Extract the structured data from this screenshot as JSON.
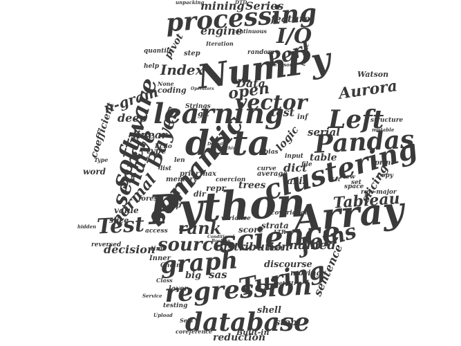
{
  "palette": {
    "ink": "#3a3a3a",
    "background": "#ffffff"
  },
  "words": [
    "Python",
    "Array",
    "NumPy",
    "data",
    "learning",
    "science",
    "clustering",
    "Pandas",
    "processing",
    "semantic",
    "regression",
    "database",
    "graph",
    "Turing",
    "Left",
    "vector",
    "software",
    "search",
    "naive",
    "Bayes",
    "Test",
    "Joins",
    "source",
    "rank",
    "Tableau",
    "I/O",
    "Perl",
    "Series",
    "Index",
    "mining",
    "engine",
    "feature",
    "Aurora",
    "Watson",
    "open",
    "Data",
    "normal",
    "n-gram",
    "coefficient",
    "deep",
    "linear",
    "slicing",
    "named",
    "distribution",
    "decision",
    "reduction",
    "sentence",
    "shell",
    "stop",
    "gain",
    "trees",
    "dict",
    "axis",
    "table",
    "serial",
    "logic",
    "test",
    "sas",
    "big",
    "score",
    "strata",
    "memory",
    "type",
    "word",
    "value",
    "slice",
    "forest",
    "repr",
    "dir",
    "zip",
    "Inner",
    "Chain",
    "moving",
    "layer",
    "time",
    "print",
    "copy",
    "set",
    "list",
    "len",
    "pivot",
    "step",
    "random",
    "quantile",
    "help",
    "coding",
    "Strings",
    "Echo",
    "View",
    "space",
    "row-major",
    "discourse",
    "variance",
    "covariance",
    "average",
    "curve",
    "prior",
    "max",
    "coercion",
    "bias",
    "file",
    "input",
    "git",
    "inf",
    "structure",
    "continuous",
    "unpacking",
    "DTD",
    "Iteration",
    "Built-in",
    "coreference",
    "getattr",
    "testing",
    "Class",
    "access",
    "hidden",
    "reversed",
    "Root",
    "LTR",
    "Set",
    "Type",
    "Cursor",
    "None",
    "Boolean",
    "Conditional",
    "Machine",
    "Default",
    "Operators",
    "logistic",
    "mutable",
    "Sets",
    "Upload",
    "Service"
  ]
}
